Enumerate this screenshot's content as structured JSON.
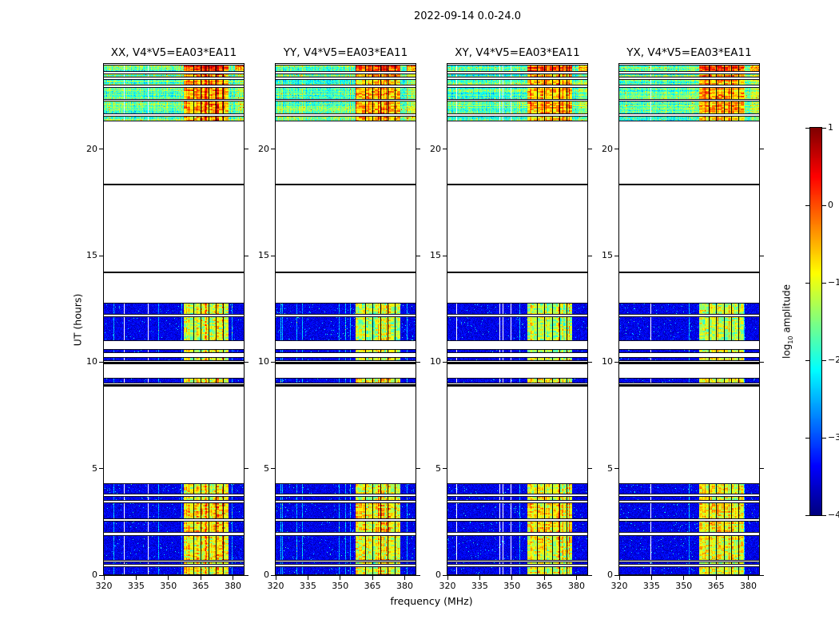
{
  "figure": {
    "title": "2022-09-14 0.0-24.0",
    "xlabel": "frequency (MHz)",
    "ylabel": "UT (hours)",
    "colorbar_label": {
      "pre": "log",
      "sub": "10",
      "post": " amplitude"
    }
  },
  "chart_data": {
    "type": "heatmap",
    "title": "2022-09-14 0.0-24.0",
    "panels": [
      {
        "id": "xx",
        "title": "XX, V4*V5=EA03*EA11"
      },
      {
        "id": "yy",
        "title": "YY, V4*V5=EA03*EA11"
      },
      {
        "id": "xy",
        "title": "XY, V4*V5=EA03*EA11"
      },
      {
        "id": "yx",
        "title": "YX, V4*V5=EA03*EA11"
      }
    ],
    "x_axis": {
      "label": "frequency (MHz)",
      "range": [
        320,
        385
      ],
      "ticks": [
        320,
        335,
        350,
        365,
        380
      ]
    },
    "y_axis": {
      "label": "UT (hours)",
      "range": [
        0,
        24
      ],
      "ticks": [
        0,
        5,
        10,
        15,
        20
      ]
    },
    "colorbar": {
      "label": "log10 amplitude",
      "min": -4,
      "max": 1,
      "ticks": [
        1,
        0,
        -1,
        -2,
        -3,
        -4
      ],
      "colormap": "jet"
    },
    "rfi": {
      "freq_start": 357,
      "freq_end": 378,
      "dark_lines_mhz": [
        361.5,
        365,
        368.5,
        372,
        375.5
      ]
    },
    "bands": [
      {
        "ut": [
          0.0,
          0.42
        ],
        "style": "noise",
        "rfi_boost": 0.1
      },
      {
        "ut": [
          0.5,
          0.62
        ],
        "style": "noise",
        "rfi_boost": 0.0
      },
      {
        "ut": [
          0.68,
          1.88
        ],
        "style": "noise",
        "rfi_boost": 0.15
      },
      {
        "ut": [
          2.0,
          2.55
        ],
        "style": "noise",
        "rfi_boost": 0.32
      },
      {
        "ut": [
          2.62,
          3.42
        ],
        "style": "noise",
        "rfi_boost": 0.3
      },
      {
        "ut": [
          3.5,
          3.72
        ],
        "style": "noise",
        "rfi_boost": 0.05
      },
      {
        "ut": [
          3.8,
          4.3
        ],
        "style": "noise",
        "rfi_boost": 0.12
      },
      {
        "ut": [
          8.85,
          8.95
        ],
        "style": "line"
      },
      {
        "ut": [
          9.0,
          9.25
        ],
        "style": "noise",
        "rfi_boost": 0.2
      },
      {
        "ut": [
          9.9,
          10.0
        ],
        "style": "line"
      },
      {
        "ut": [
          10.05,
          10.25
        ],
        "style": "noise",
        "rfi_boost": 0.05
      },
      {
        "ut": [
          10.42,
          10.6
        ],
        "style": "noise",
        "rfi_boost": 0.0
      },
      {
        "ut": [
          11.0,
          12.15
        ],
        "style": "noise",
        "rfi_boost": -0.12
      },
      {
        "ut": [
          12.22,
          12.8
        ],
        "style": "noise",
        "rfi_boost": -0.05
      },
      {
        "ut": [
          14.18,
          14.26
        ],
        "style": "line"
      },
      {
        "ut": [
          18.3,
          18.38
        ],
        "style": "line"
      },
      {
        "ut": [
          21.3,
          21.55
        ],
        "style": "active",
        "rfi_boost": 0.2
      },
      {
        "ut": [
          21.62,
          22.28
        ],
        "style": "active",
        "rfi_boost": 0.28
      },
      {
        "ut": [
          22.33,
          22.92
        ],
        "style": "active",
        "rfi_boost": 0.3
      },
      {
        "ut": [
          22.97,
          23.28
        ],
        "style": "active",
        "rfi_boost": 0.25
      },
      {
        "ut": [
          23.35,
          23.55
        ],
        "style": "active",
        "rfi_boost": 0.35
      },
      {
        "ut": [
          23.62,
          23.95
        ],
        "style": "active_hot",
        "rfi_boost": 0.5
      }
    ]
  }
}
